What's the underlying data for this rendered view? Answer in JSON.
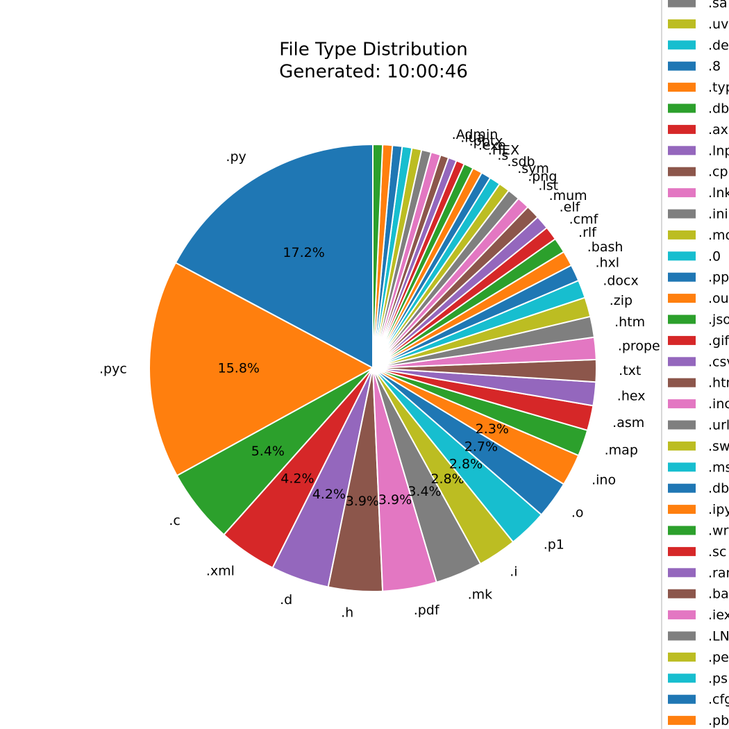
{
  "chart_data": {
    "type": "pie",
    "title": "File Type Distribution",
    "subtitle": "Generated: 10:00:46",
    "start_angle": 90,
    "counterclockwise": true,
    "colors": [
      "#1f77b4",
      "#ff7f0e",
      "#2ca02c",
      "#d62728",
      "#9467bd",
      "#8c564b",
      "#e377c2",
      "#7f7f7f",
      "#bcbd22",
      "#17becf"
    ],
    "categories": [
      ".py",
      ".pyc",
      ".c",
      ".xml",
      ".d",
      ".h",
      ".pdf",
      ".mk",
      ".i",
      ".p1",
      ".o",
      ".ino",
      ".map",
      ".asm",
      ".hex",
      ".txt",
      ".properties",
      ".htm",
      ".zip",
      ".docx",
      ".hxl",
      ".bash",
      ".rlf",
      ".cmf",
      ".elf",
      ".mum",
      ".lst",
      ".png",
      ".sym",
      ".sdb",
      ".s",
      ".HEX",
      ".exe",
      ".pptx",
      ".lua",
      ".Admin",
      null,
      null,
      null,
      null,
      null,
      null,
      null
    ],
    "values": [
      17.2,
      15.8,
      5.4,
      4.2,
      4.2,
      3.9,
      3.9,
      3.4,
      2.8,
      2.8,
      2.7,
      2.3,
      1.9,
      1.8,
      1.7,
      1.6,
      1.6,
      1.5,
      1.4,
      1.3,
      1.2,
      1.1,
      1.1,
      1.0,
      1.0,
      1.0,
      0.9,
      0.9,
      0.8,
      0.8,
      0.7,
      0.7,
      0.7,
      0.6,
      0.6,
      0.6,
      0.7,
      0.7,
      0.7,
      0.7,
      0.7,
      0.7,
      0.7
    ],
    "value_labels": [
      "17.2%",
      "15.8%",
      "5.4%",
      "4.2%",
      "4.2%",
      "3.9%",
      "3.9%",
      "3.4%",
      "2.8%",
      "2.8%",
      "2.7%",
      "2.3%",
      null,
      null,
      null,
      null,
      null,
      null,
      null,
      null,
      null,
      null,
      null,
      null,
      null,
      null,
      null,
      null,
      null,
      null,
      null,
      null,
      null,
      null,
      null,
      null,
      null,
      null,
      null,
      null,
      null,
      null,
      null
    ],
    "legend": {
      "labels": [
        ".sa",
        ".uv",
        ".de",
        ".8",
        ".typ",
        ".db",
        ".ax",
        ".lnp",
        ".cp",
        ".lnk",
        ".ini",
        ".mo",
        ".0",
        ".pp",
        ".ou",
        ".jso",
        ".gif",
        ".csv",
        ".htm",
        ".inc",
        ".url",
        ".sw",
        ".ms",
        ".db",
        ".ipy",
        ".wr",
        ".sc",
        ".ran",
        ".ba",
        ".iex",
        ".LN",
        ".pe",
        ".ps",
        ".cfg",
        ".pb"
      ],
      "colors": [
        "#7f7f7f",
        "#bcbd22",
        "#17becf",
        "#1f77b4",
        "#ff7f0e",
        "#2ca02c",
        "#d62728",
        "#9467bd",
        "#8c564b",
        "#e377c2",
        "#7f7f7f",
        "#bcbd22",
        "#17becf",
        "#1f77b4",
        "#ff7f0e",
        "#2ca02c",
        "#d62728",
        "#9467bd",
        "#8c564b",
        "#e377c2",
        "#7f7f7f",
        "#bcbd22",
        "#17becf",
        "#1f77b4",
        "#ff7f0e",
        "#2ca02c",
        "#d62728",
        "#9467bd",
        "#8c564b",
        "#e377c2",
        "#7f7f7f",
        "#bcbd22",
        "#17becf",
        "#1f77b4",
        "#ff7f0e"
      ]
    }
  }
}
